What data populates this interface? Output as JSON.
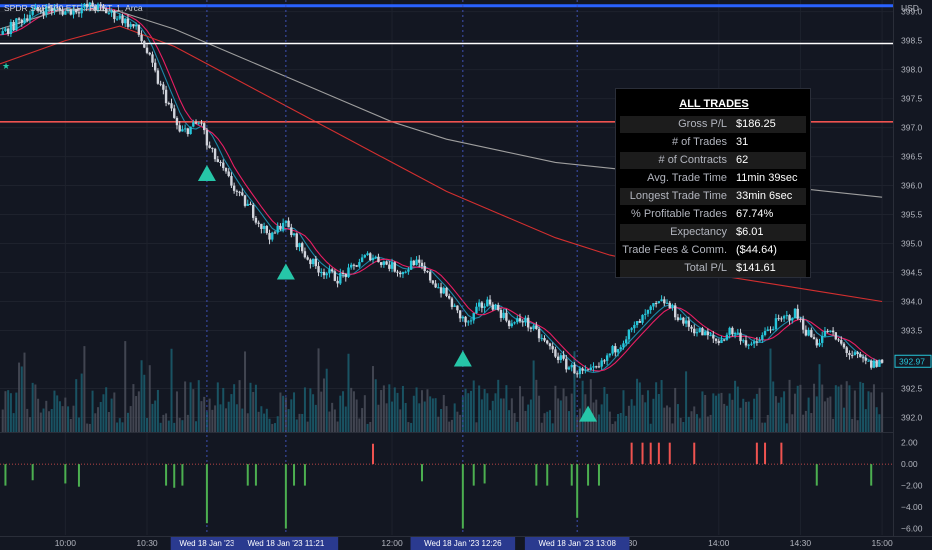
{
  "legend": {
    "symbol": "SPDR S&P 500 ETF TRUST",
    "interval": "1",
    "exchange": "Arca"
  },
  "currency": "USD",
  "last_price": "392.97",
  "stats_panel": {
    "title": "ALL TRADES",
    "rows": [
      {
        "label": "Gross P/L",
        "value": "$186.25"
      },
      {
        "label": "# of Trades",
        "value": "31"
      },
      {
        "label": "# of Contracts",
        "value": "62"
      },
      {
        "label": "Avg. Trade Time",
        "value": "11min 39sec"
      },
      {
        "label": "Longest Trade Time",
        "value": "33min 6sec"
      },
      {
        "label": "% Profitable Trades",
        "value": "67.74%"
      },
      {
        "label": "Expectancy",
        "value": "$6.01"
      },
      {
        "label": "Trade Fees & Comm.",
        "value": "($44.64)"
      },
      {
        "label": "Total P/L",
        "value": "$141.61"
      }
    ]
  },
  "chart_data": {
    "type": "candlestick",
    "x_axis": {
      "ticks": [
        {
          "t": 0,
          "label": "10:00"
        },
        {
          "t": 30,
          "label": "10:30"
        },
        {
          "t": 120,
          "label": "12:00"
        },
        {
          "t": 240,
          "label": "14:00"
        },
        {
          "t": 270,
          "label": "14:30"
        },
        {
          "t": 300,
          "label": "15:00"
        }
      ],
      "range_minutes": [
        -24,
        304
      ],
      "highlight_labels": [
        {
          "t": 52,
          "label": "Wed 18 Jan '23"
        },
        {
          "t": 81,
          "label": "Wed 18 Jan '23  11:21"
        },
        {
          "t": 146,
          "label": "Wed 18 Jan '23  12:26"
        },
        {
          "t": 188,
          "label": "Wed 18 Jan '23  13:08"
        }
      ],
      "partial_labels": [
        {
          "t": 200,
          "label": "13:30"
        }
      ]
    },
    "y_axis": {
      "ticks": [
        399.0,
        398.5,
        398.0,
        397.5,
        397.0,
        396.5,
        396.0,
        395.5,
        395.0,
        394.5,
        394.0,
        393.5,
        392.5,
        392.0
      ],
      "range": [
        391.75,
        399.2
      ]
    },
    "price_series": {
      "path": [
        [
          -24,
          398.6
        ],
        [
          -18,
          398.8
        ],
        [
          -12,
          399.0
        ],
        [
          -6,
          399.05
        ],
        [
          0,
          399.0
        ],
        [
          10,
          399.1
        ],
        [
          20,
          398.9
        ],
        [
          26,
          398.7
        ],
        [
          30,
          398.3
        ],
        [
          34,
          397.8
        ],
        [
          38,
          397.4
        ],
        [
          42,
          396.9
        ],
        [
          46,
          397.0
        ],
        [
          50,
          397.1
        ],
        [
          52,
          396.7
        ],
        [
          56,
          396.4
        ],
        [
          60,
          396.1
        ],
        [
          64,
          395.8
        ],
        [
          68,
          395.6
        ],
        [
          72,
          395.3
        ],
        [
          76,
          395.1
        ],
        [
          80,
          395.4
        ],
        [
          84,
          395.1
        ],
        [
          88,
          394.8
        ],
        [
          92,
          394.6
        ],
        [
          96,
          394.5
        ],
        [
          100,
          394.4
        ],
        [
          104,
          394.5
        ],
        [
          108,
          394.7
        ],
        [
          112,
          394.8
        ],
        [
          116,
          394.7
        ],
        [
          120,
          394.6
        ],
        [
          124,
          394.5
        ],
        [
          128,
          394.7
        ],
        [
          132,
          394.5
        ],
        [
          136,
          394.3
        ],
        [
          140,
          394.1
        ],
        [
          144,
          393.8
        ],
        [
          148,
          393.6
        ],
        [
          152,
          393.9
        ],
        [
          156,
          394.0
        ],
        [
          160,
          393.8
        ],
        [
          164,
          393.6
        ],
        [
          168,
          393.7
        ],
        [
          172,
          393.5
        ],
        [
          176,
          393.3
        ],
        [
          180,
          393.1
        ],
        [
          184,
          392.9
        ],
        [
          188,
          392.8
        ],
        [
          192,
          392.75
        ],
        [
          196,
          392.85
        ],
        [
          200,
          393.1
        ],
        [
          204,
          393.3
        ],
        [
          208,
          393.5
        ],
        [
          212,
          393.7
        ],
        [
          216,
          393.9
        ],
        [
          220,
          394.0
        ],
        [
          224,
          393.8
        ],
        [
          228,
          393.6
        ],
        [
          232,
          393.5
        ],
        [
          236,
          393.4
        ],
        [
          240,
          393.3
        ],
        [
          244,
          393.5
        ],
        [
          248,
          393.4
        ],
        [
          252,
          393.2
        ],
        [
          256,
          393.4
        ],
        [
          260,
          393.6
        ],
        [
          264,
          393.7
        ],
        [
          268,
          393.8
        ],
        [
          272,
          393.5
        ],
        [
          276,
          393.3
        ],
        [
          280,
          393.5
        ],
        [
          284,
          393.3
        ],
        [
          288,
          393.1
        ],
        [
          292,
          393.0
        ],
        [
          296,
          392.9
        ],
        [
          300,
          392.97
        ]
      ],
      "up_color": "#26c6da",
      "down_color": "#d1d4dc"
    },
    "moving_averages": [
      {
        "color": "#1e88a8",
        "lag": 3
      },
      {
        "color": "#e91e63",
        "lag": 5
      },
      {
        "color": "#9e9e9e",
        "path": [
          [
            -24,
            398.7
          ],
          [
            0,
            399.05
          ],
          [
            20,
            399.0
          ],
          [
            40,
            398.7
          ],
          [
            60,
            398.3
          ],
          [
            80,
            397.9
          ],
          [
            100,
            397.5
          ],
          [
            120,
            397.1
          ],
          [
            140,
            396.8
          ],
          [
            160,
            396.6
          ],
          [
            180,
            396.4
          ],
          [
            200,
            396.3
          ],
          [
            220,
            396.2
          ],
          [
            240,
            396.1
          ],
          [
            260,
            396.0
          ],
          [
            280,
            395.9
          ],
          [
            300,
            395.8
          ]
        ]
      },
      {
        "color": "#d32f2f",
        "path": [
          [
            -24,
            398.1
          ],
          [
            0,
            398.5
          ],
          [
            20,
            398.75
          ],
          [
            40,
            398.4
          ],
          [
            60,
            397.9
          ],
          [
            80,
            397.4
          ],
          [
            100,
            396.9
          ],
          [
            120,
            396.4
          ],
          [
            140,
            395.9
          ],
          [
            160,
            395.5
          ],
          [
            180,
            395.1
          ],
          [
            200,
            394.8
          ],
          [
            220,
            394.6
          ],
          [
            240,
            394.45
          ],
          [
            260,
            394.3
          ],
          [
            280,
            394.15
          ],
          [
            300,
            394.0
          ]
        ]
      }
    ],
    "horizontal_lines": [
      {
        "price": 399.1,
        "color": "#2962ff"
      },
      {
        "price": 398.45,
        "color": "#ffffff"
      },
      {
        "price": 397.1,
        "color": "#ef5350"
      }
    ],
    "vertical_markers": [
      52,
      81,
      146,
      188
    ],
    "buy_markers": [
      {
        "t": 52,
        "price": 396.2
      },
      {
        "t": 81,
        "price": 394.5
      },
      {
        "t": 146,
        "price": 393.0
      },
      {
        "t": 192,
        "price": 392.05
      }
    ],
    "indicator_lower": {
      "y_axis": {
        "ticks": [
          2.0,
          0.0,
          -2.0,
          -4.0,
          -6.0
        ],
        "range": [
          -6.6,
          2.9
        ]
      },
      "bars": [
        {
          "t": -22,
          "v": -2.0
        },
        {
          "t": -12,
          "v": -1.5
        },
        {
          "t": 0,
          "v": -1.8
        },
        {
          "t": 5,
          "v": -2.1
        },
        {
          "t": 37,
          "v": -2.0
        },
        {
          "t": 40,
          "v": -2.2
        },
        {
          "t": 43,
          "v": -2.0
        },
        {
          "t": 52,
          "v": -5.5
        },
        {
          "t": 67,
          "v": -2.0
        },
        {
          "t": 70,
          "v": -2.0
        },
        {
          "t": 81,
          "v": -6.0
        },
        {
          "t": 84,
          "v": -2.0
        },
        {
          "t": 88,
          "v": -2.0
        },
        {
          "t": 113,
          "v": 1.9
        },
        {
          "t": 131,
          "v": -1.6
        },
        {
          "t": 146,
          "v": -6.0
        },
        {
          "t": 150,
          "v": -2.0
        },
        {
          "t": 154,
          "v": -1.8
        },
        {
          "t": 173,
          "v": -2.0
        },
        {
          "t": 177,
          "v": -2.0
        },
        {
          "t": 186,
          "v": -2.0
        },
        {
          "t": 188,
          "v": -5.0
        },
        {
          "t": 192,
          "v": -2.0
        },
        {
          "t": 196,
          "v": -2.0
        },
        {
          "t": 208,
          "v": 2.0
        },
        {
          "t": 212,
          "v": 2.0
        },
        {
          "t": 215,
          "v": 2.0
        },
        {
          "t": 218,
          "v": 2.0
        },
        {
          "t": 222,
          "v": 2.0
        },
        {
          "t": 231,
          "v": 2.0
        },
        {
          "t": 254,
          "v": 2.0
        },
        {
          "t": 257,
          "v": 2.0
        },
        {
          "t": 263,
          "v": 2.0
        },
        {
          "t": 276,
          "v": -2.0
        },
        {
          "t": 296,
          "v": -2.0
        }
      ],
      "up_color": "#ef5350",
      "down_color": "#4caf50"
    }
  }
}
